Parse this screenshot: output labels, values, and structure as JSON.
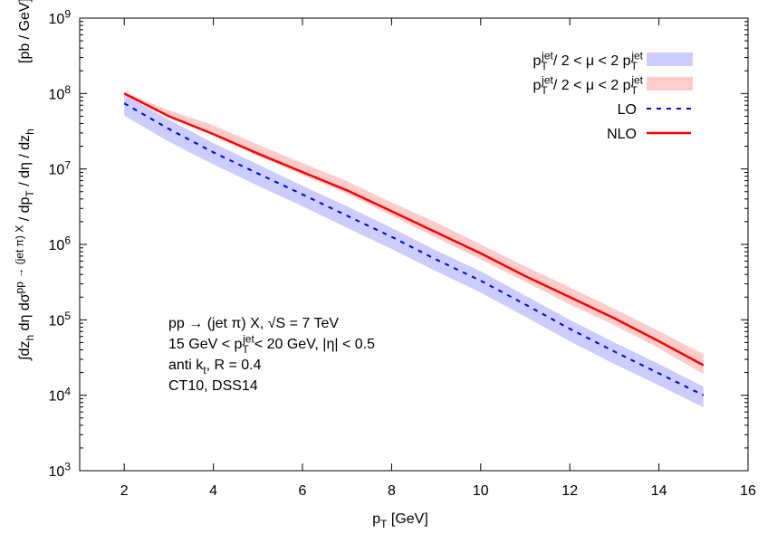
{
  "chart_data": {
    "type": "line",
    "title": "",
    "xlabel": "p_T [GeV]",
    "ylabel": "∫dz_h dη dσ^{pp → (jet π) X} / dp_T / dη / dz_h",
    "ylabel_unit": "[pb / GeV]",
    "xlim": [
      1,
      16
    ],
    "ylim": [
      1000,
      1000000000
    ],
    "yscale": "log",
    "grid": false,
    "legend_position": "top-right",
    "x_ticks": [
      2,
      4,
      6,
      8,
      10,
      12,
      14,
      16
    ],
    "y_ticks": [
      "10^{3}",
      "10^{4}",
      "10^{5}",
      "10^{6}",
      "10^{7}",
      "10^{8}",
      "10^{9}"
    ],
    "x": [
      2,
      3,
      4,
      5,
      6,
      7,
      8,
      9,
      10,
      11,
      12,
      13,
      14,
      15
    ],
    "bands": [
      {
        "name": "p_T^{jet}/ 2 < μ < 2 p_T^{jet}",
        "color": "#ccccff",
        "upper": [
          98000000.0,
          45000000.0,
          22000000.0,
          11500000.0,
          6000000.0,
          3200000.0,
          1660000.0,
          830000.0,
          440000.0,
          210000.0,
          100000.0,
          50000.0,
          26000.0,
          13000.0
        ],
        "lower": [
          51000000.0,
          23000000.0,
          11500000.0,
          6000000.0,
          3200000.0,
          1660000.0,
          870000.0,
          440000.0,
          230000.0,
          110000.0,
          52000.0,
          26000.0,
          13500.0,
          6900.0
        ]
      },
      {
        "name": "p_T^{jet}/ 2 < μ < 2 p_T^{jet}",
        "color": "#ffcccc",
        "upper": [
          105000000.0,
          60000000.0,
          38000000.0,
          21000000.0,
          12000000.0,
          6900000.0,
          3600000.0,
          1950000.0,
          1000000.0,
          510000.0,
          270000.0,
          140000.0,
          71000.0,
          35000.0
        ],
        "lower": [
          98000000.0,
          49000000.0,
          27500000.0,
          15000000.0,
          8300000.0,
          4700000.0,
          2400000.0,
          1230000.0,
          630000.0,
          320000.0,
          160000.0,
          85000.0,
          42000.0,
          19000.0
        ]
      }
    ],
    "series": [
      {
        "name": "LO",
        "color": "#0000ff",
        "style": "dashed",
        "values": [
          74000000.0,
          34000000.0,
          16600000.0,
          8700000.0,
          4600000.0,
          2400000.0,
          1260000.0,
          630000.0,
          330000.0,
          160000.0,
          76000.0,
          38000.0,
          19500.0,
          10000.0
        ]
      },
      {
        "name": "NLO",
        "color": "#ff0000",
        "style": "solid",
        "values": [
          100000000.0,
          50000000.0,
          29000000.0,
          16000000.0,
          9100000.0,
          5200000.0,
          2750000.0,
          1450000.0,
          760000.0,
          380000.0,
          200000.0,
          105000.0,
          52000.0,
          25000.0
        ]
      }
    ],
    "annotations": [
      "pp → (jet π) X, √S = 7 TeV",
      "15 GeV < p_T^{jet}< 20 GeV, |η| < 0.5",
      "anti k_t, R = 0.4",
      "CT10, DSS14"
    ]
  }
}
